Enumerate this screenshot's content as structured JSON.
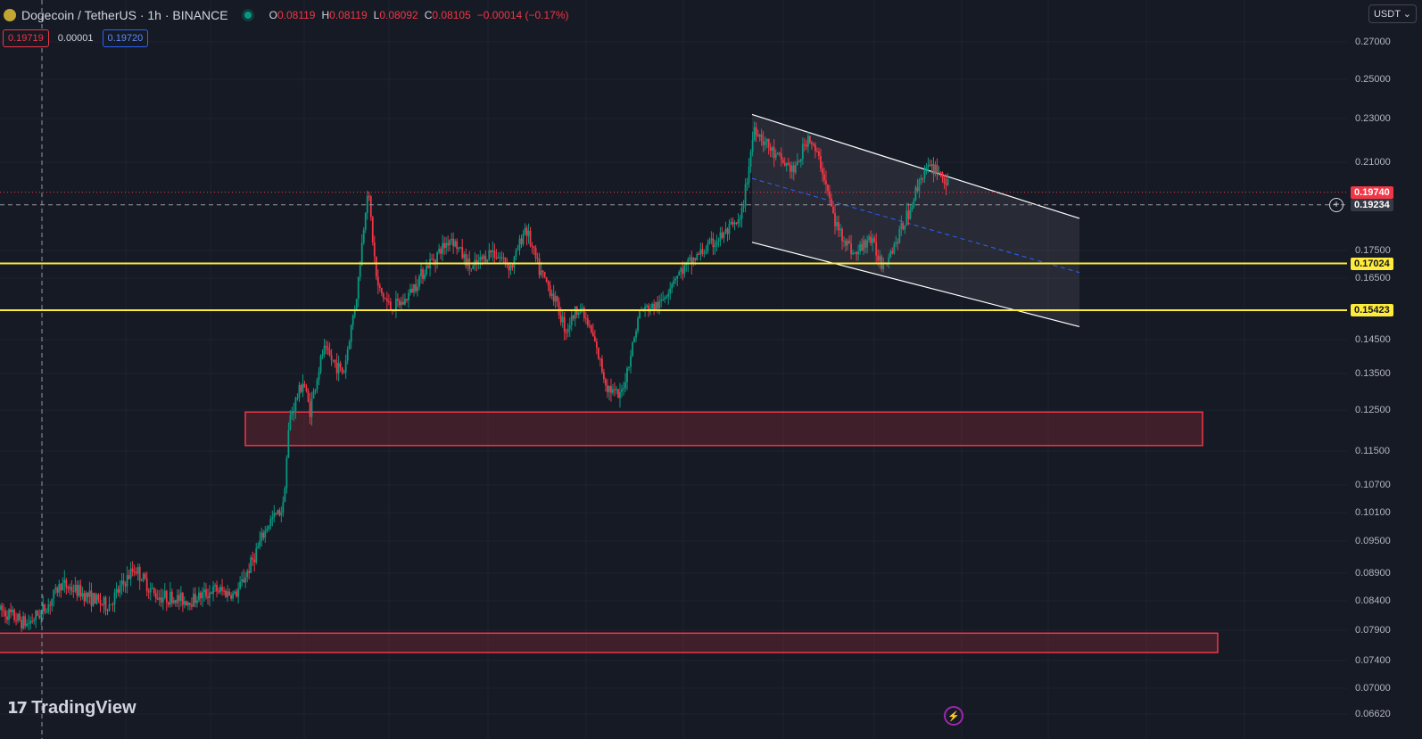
{
  "header": {
    "symbol": "Dogecoin / TetherUS · 1h · BINANCE",
    "ohlc": [
      {
        "k": "O",
        "v": "0.08119"
      },
      {
        "k": "H",
        "v": "0.08119"
      },
      {
        "k": "L",
        "v": "0.08092"
      },
      {
        "k": "C",
        "v": "0.08105"
      },
      {
        "k": "",
        "v": "−0.00014 (−0.17%)"
      }
    ]
  },
  "quotes": {
    "sell": "0.19719",
    "spread": "0.00001",
    "buy": "0.19720"
  },
  "currency": "USDT",
  "brand": "TradingView",
  "colors": {
    "bg": "#161a25",
    "up": "#089981",
    "down": "#f23645",
    "level": "#ffeb3b",
    "zone": "#f23645"
  },
  "chart_data": {
    "type": "candlestick",
    "symbol": "DOGE/USDT",
    "interval": "1h",
    "y_axis_ticks": [
      0.27,
      0.25,
      0.23,
      0.21,
      0.175,
      0.165,
      0.145,
      0.135,
      0.125,
      0.115,
      0.107,
      0.101,
      0.095,
      0.089,
      0.084,
      0.079,
      0.074,
      0.07,
      0.0662
    ],
    "y_axis_labels": [
      "0.27000",
      "0.25000",
      "0.23000",
      "0.21000",
      "0.17500",
      "0.16500",
      "0.14500",
      "0.13500",
      "0.12500",
      "0.11500",
      "0.10700",
      "0.10100",
      "0.09500",
      "0.08900",
      "0.08400",
      "0.07900",
      "0.07400",
      "0.07000",
      "0.06620"
    ],
    "last_price": {
      "value": 0.1974,
      "label": "0.19740"
    },
    "crosshair_price": {
      "value": 0.19234,
      "label": "0.19234"
    },
    "horizontal_levels": [
      {
        "value": 0.17024,
        "label": "0.17024"
      },
      {
        "value": 0.15423,
        "label": "0.15423"
      }
    ],
    "zones": [
      {
        "top": 0.1245,
        "bottom": 0.1163
      },
      {
        "top": 0.0785,
        "bottom": 0.0753
      }
    ],
    "channel": {
      "upper": [
        {
          "bar": 0.555,
          "price": 0.232
        },
        {
          "bar": 0.8,
          "price": 0.187
        }
      ],
      "lower": [
        {
          "bar": 0.555,
          "price": 0.178
        },
        {
          "bar": 0.8,
          "price": 0.149
        }
      ]
    },
    "price_path": [
      [
        0,
        0.0825
      ],
      [
        0.02,
        0.08
      ],
      [
        0.035,
        0.083
      ],
      [
        0.045,
        0.087
      ],
      [
        0.06,
        0.0855
      ],
      [
        0.08,
        0.083
      ],
      [
        0.1,
        0.09
      ],
      [
        0.115,
        0.085
      ],
      [
        0.14,
        0.084
      ],
      [
        0.16,
        0.086
      ],
      [
        0.175,
        0.085
      ],
      [
        0.185,
        0.09
      ],
      [
        0.2,
        0.099
      ],
      [
        0.21,
        0.102
      ],
      [
        0.215,
        0.123
      ],
      [
        0.225,
        0.133
      ],
      [
        0.23,
        0.125
      ],
      [
        0.24,
        0.142
      ],
      [
        0.255,
        0.135
      ],
      [
        0.265,
        0.16
      ],
      [
        0.273,
        0.2
      ],
      [
        0.28,
        0.162
      ],
      [
        0.29,
        0.155
      ],
      [
        0.3,
        0.157
      ],
      [
        0.315,
        0.168
      ],
      [
        0.335,
        0.18
      ],
      [
        0.35,
        0.168
      ],
      [
        0.365,
        0.175
      ],
      [
        0.38,
        0.169
      ],
      [
        0.39,
        0.184
      ],
      [
        0.4,
        0.168
      ],
      [
        0.41,
        0.16
      ],
      [
        0.42,
        0.148
      ],
      [
        0.43,
        0.156
      ],
      [
        0.44,
        0.146
      ],
      [
        0.45,
        0.132
      ],
      [
        0.46,
        0.128
      ],
      [
        0.465,
        0.135
      ],
      [
        0.475,
        0.154
      ],
      [
        0.49,
        0.156
      ],
      [
        0.5,
        0.165
      ],
      [
        0.52,
        0.174
      ],
      [
        0.54,
        0.182
      ],
      [
        0.55,
        0.186
      ],
      [
        0.56,
        0.226
      ],
      [
        0.575,
        0.213
      ],
      [
        0.59,
        0.206
      ],
      [
        0.6,
        0.222
      ],
      [
        0.61,
        0.208
      ],
      [
        0.62,
        0.185
      ],
      [
        0.635,
        0.173
      ],
      [
        0.645,
        0.18
      ],
      [
        0.655,
        0.17
      ],
      [
        0.665,
        0.178
      ],
      [
        0.675,
        0.19
      ],
      [
        0.685,
        0.206
      ],
      [
        0.695,
        0.208
      ],
      [
        0.705,
        0.199
      ]
    ]
  }
}
